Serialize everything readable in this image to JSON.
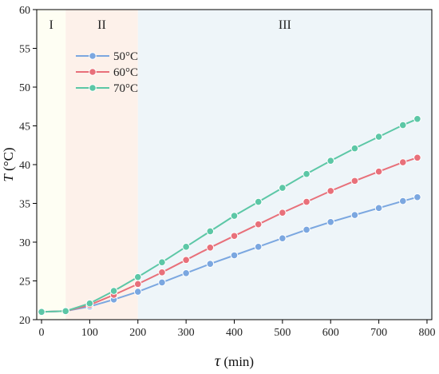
{
  "chart_data": {
    "type": "line",
    "title": "",
    "xlabel": {
      "symbol": "τ",
      "unit": " (min)"
    },
    "ylabel": {
      "symbol": "T",
      "unit": " (°C)"
    },
    "xlim": [
      -10,
      810
    ],
    "ylim": [
      20,
      60
    ],
    "xticks": [
      0,
      100,
      200,
      300,
      400,
      500,
      600,
      700,
      800
    ],
    "yticks": [
      20,
      25,
      30,
      35,
      40,
      45,
      50,
      55,
      60
    ],
    "grid": false,
    "legend_position": "top-left",
    "regions": [
      {
        "label": "I",
        "x_start": -10,
        "x_end": 50,
        "color": "#fefef3"
      },
      {
        "label": "II",
        "x_start": 50,
        "x_end": 200,
        "color": "#fdf1ea"
      },
      {
        "label": "III",
        "x_start": 200,
        "x_end": 810,
        "color": "#eef5f9"
      }
    ],
    "x": [
      0,
      50,
      100,
      150,
      200,
      250,
      300,
      350,
      400,
      450,
      500,
      550,
      600,
      650,
      700,
      750,
      780
    ],
    "series": [
      {
        "name": "50°C",
        "color": "#7ba7e0",
        "values": [
          21.0,
          21.1,
          21.7,
          22.6,
          23.6,
          24.8,
          26.0,
          27.2,
          28.3,
          29.4,
          30.5,
          31.6,
          32.6,
          33.5,
          34.4,
          35.3,
          35.8
        ]
      },
      {
        "name": "60°C",
        "color": "#e8707a",
        "values": [
          21.0,
          21.1,
          21.9,
          23.2,
          24.6,
          26.1,
          27.7,
          29.3,
          30.8,
          32.3,
          33.8,
          35.2,
          36.6,
          37.9,
          39.1,
          40.3,
          40.9
        ]
      },
      {
        "name": "70°C",
        "color": "#5cc7a6",
        "values": [
          21.0,
          21.1,
          22.1,
          23.7,
          25.5,
          27.4,
          29.4,
          31.4,
          33.4,
          35.2,
          37.0,
          38.8,
          40.5,
          42.1,
          43.6,
          45.1,
          45.9
        ]
      }
    ]
  }
}
